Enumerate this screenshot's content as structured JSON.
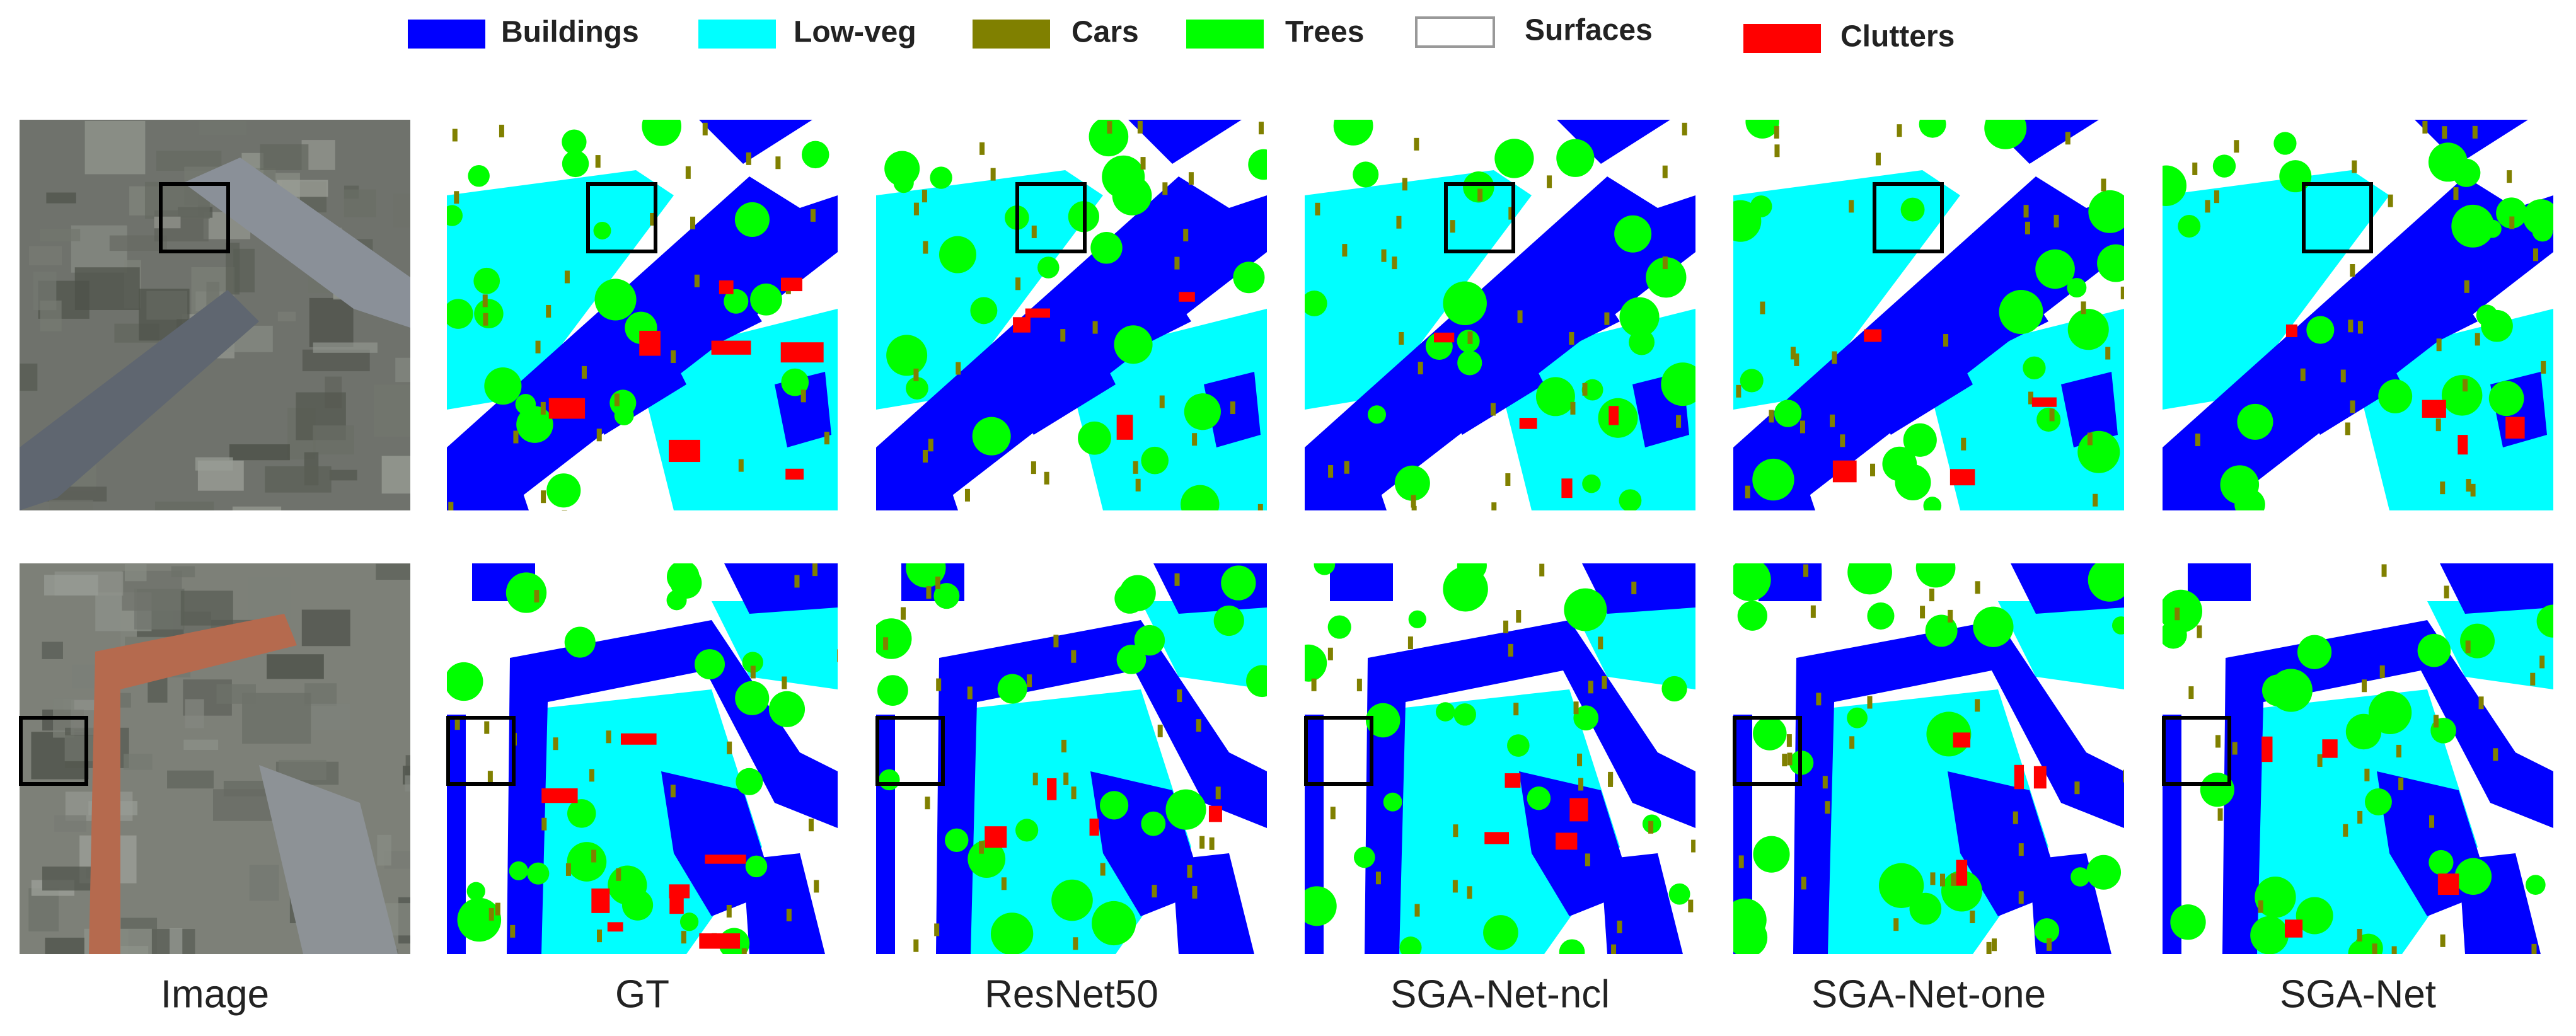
{
  "legend": [
    {
      "label": "Buildings",
      "color": "#0000ff"
    },
    {
      "label": "Low-veg",
      "color": "#00ffff"
    },
    {
      "label": "Cars",
      "color": "#808000"
    },
    {
      "label": "Trees",
      "color": "#00ff00"
    },
    {
      "label": "Surfaces",
      "color": "#ffffff"
    },
    {
      "label": "Clutters",
      "color": "#ff0000"
    }
  ],
  "columns": [
    "Image",
    "GT",
    "ResNet50",
    "SGA-Net-ncl",
    "SGA-Net-one",
    "SGA-Net"
  ]
}
